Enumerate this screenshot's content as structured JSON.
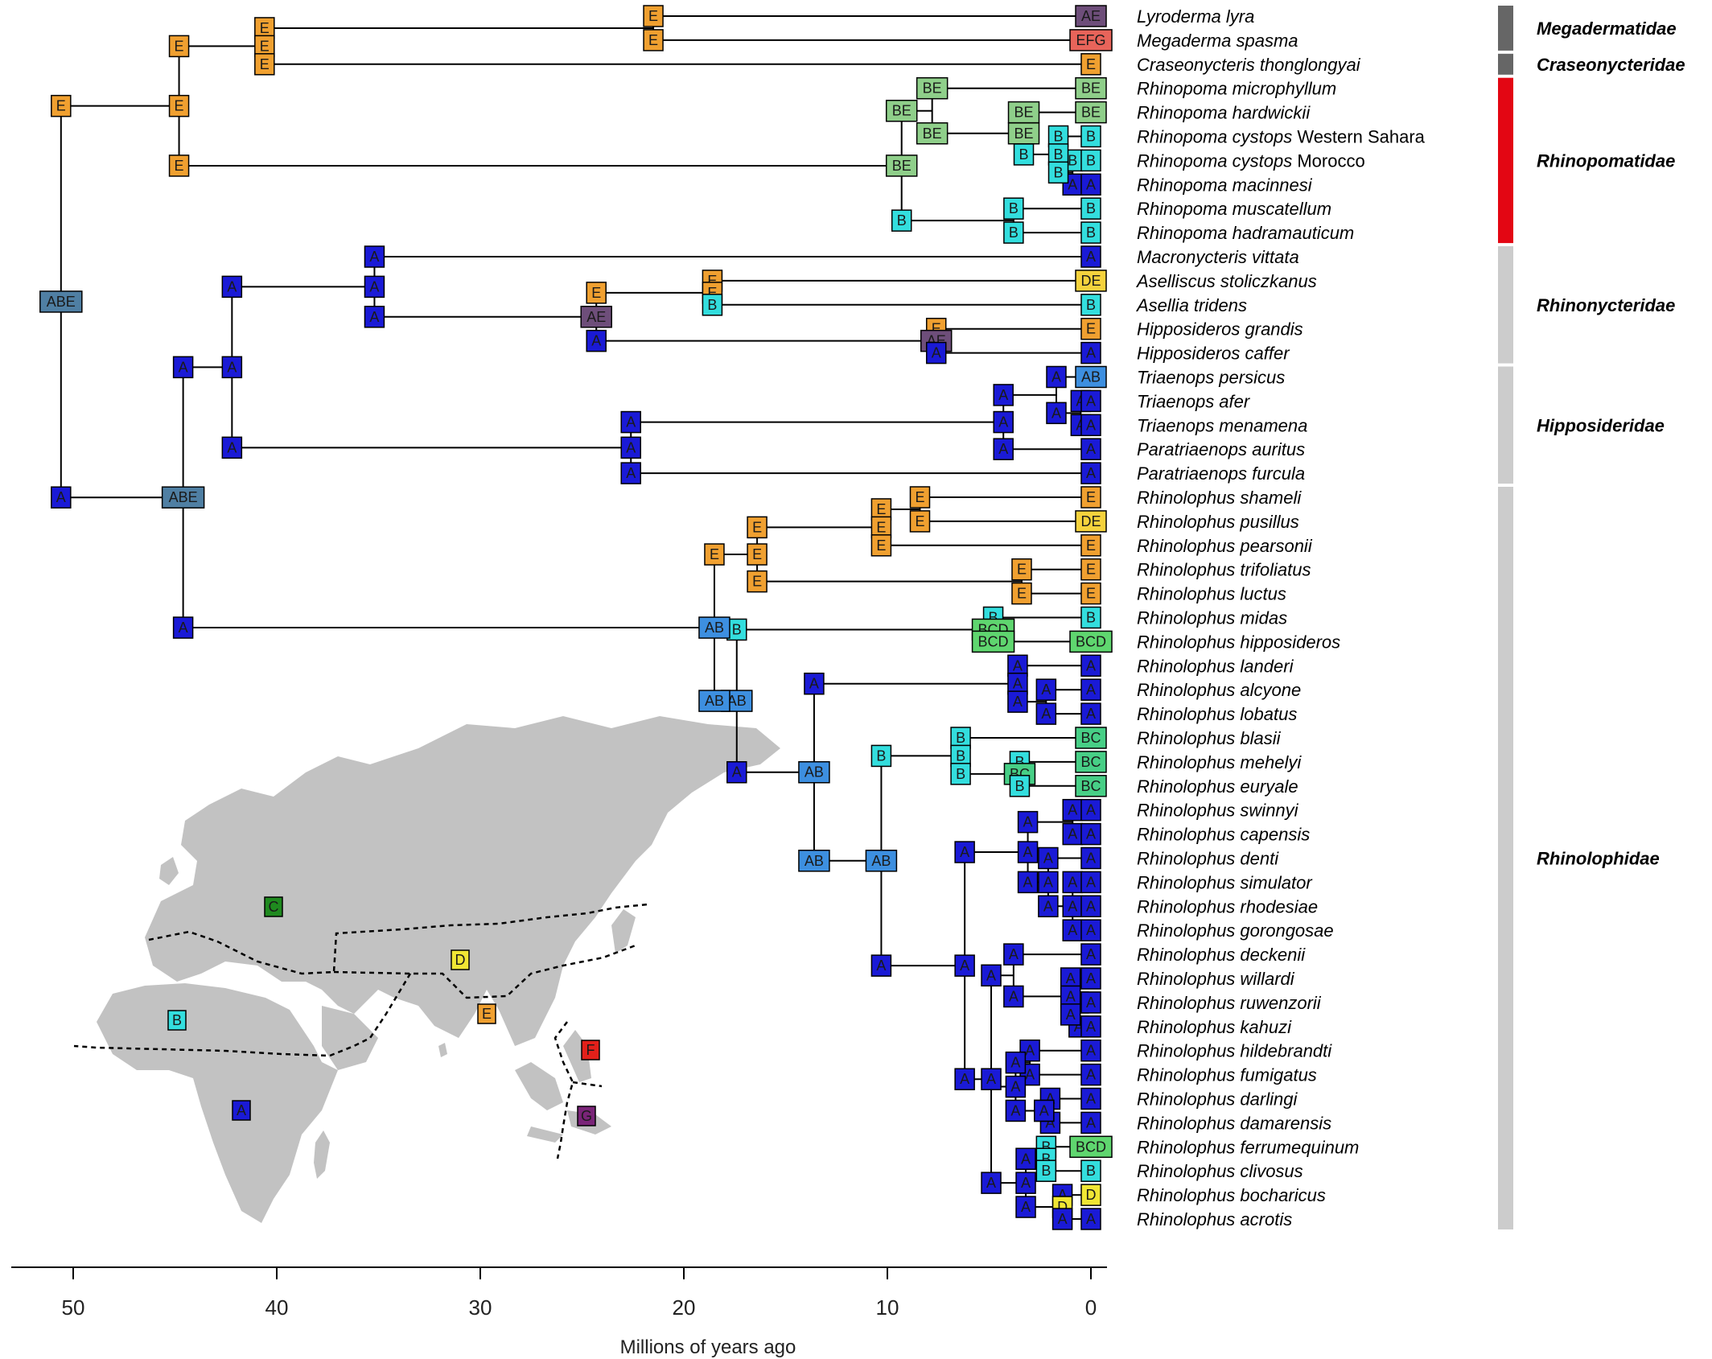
{
  "axis": {
    "title": "Millions of years ago",
    "ticks": [
      "50",
      "40",
      "30",
      "20",
      "10",
      "0"
    ]
  },
  "taxa": [
    {
      "name": "Lyroderma lyra",
      "extra": "",
      "areas": "AE"
    },
    {
      "name": "Megaderma spasma",
      "extra": "",
      "areas": "EFG"
    },
    {
      "name": "Craseonycteris thonglongyai",
      "extra": "",
      "areas": "E"
    },
    {
      "name": "Rhinopoma microphyllum",
      "extra": "",
      "areas": "BE"
    },
    {
      "name": "Rhinopoma hardwickii",
      "extra": "",
      "areas": "BE"
    },
    {
      "name": "Rhinopoma cystops",
      "extra": "Western Sahara",
      "areas": "B"
    },
    {
      "name": "Rhinopoma cystops",
      "extra": "Morocco",
      "areas": "B"
    },
    {
      "name": "Rhinopoma macinnesi",
      "extra": "",
      "areas": "A"
    },
    {
      "name": "Rhinopoma muscatellum",
      "extra": "",
      "areas": "B"
    },
    {
      "name": "Rhinopoma hadramauticum",
      "extra": "",
      "areas": "B"
    },
    {
      "name": "Macronycteris vittata",
      "extra": "",
      "areas": "A"
    },
    {
      "name": "Aselliscus stoliczkanus",
      "extra": "",
      "areas": "DE"
    },
    {
      "name": "Asellia tridens",
      "extra": "",
      "areas": "B"
    },
    {
      "name": "Hipposideros grandis",
      "extra": "",
      "areas": "E"
    },
    {
      "name": "Hipposideros caffer",
      "extra": "",
      "areas": "A"
    },
    {
      "name": "Triaenops persicus",
      "extra": "",
      "areas": "AB"
    },
    {
      "name": "Triaenops afer",
      "extra": "",
      "areas": "A"
    },
    {
      "name": "Triaenops menamena",
      "extra": "",
      "areas": "A"
    },
    {
      "name": "Paratriaenops auritus",
      "extra": "",
      "areas": "A"
    },
    {
      "name": "Paratriaenops furcula",
      "extra": "",
      "areas": "A"
    },
    {
      "name": "Rhinolophus shameli",
      "extra": "",
      "areas": "E"
    },
    {
      "name": "Rhinolophus pusillus",
      "extra": "",
      "areas": "DE"
    },
    {
      "name": "Rhinolophus pearsonii",
      "extra": "",
      "areas": "E"
    },
    {
      "name": "Rhinolophus trifoliatus",
      "extra": "",
      "areas": "E"
    },
    {
      "name": "Rhinolophus luctus",
      "extra": "",
      "areas": "E"
    },
    {
      "name": "Rhinolophus midas",
      "extra": "",
      "areas": "B"
    },
    {
      "name": "Rhinolophus hipposideros",
      "extra": "",
      "areas": "BCD"
    },
    {
      "name": "Rhinolophus landeri",
      "extra": "",
      "areas": "A"
    },
    {
      "name": "Rhinolophus alcyone",
      "extra": "",
      "areas": "A"
    },
    {
      "name": "Rhinolophus lobatus",
      "extra": "",
      "areas": "A"
    },
    {
      "name": "Rhinolophus blasii",
      "extra": "",
      "areas": "BC"
    },
    {
      "name": "Rhinolophus mehelyi",
      "extra": "",
      "areas": "BC"
    },
    {
      "name": "Rhinolophus euryale",
      "extra": "",
      "areas": "BC"
    },
    {
      "name": "Rhinolophus swinnyi",
      "extra": "",
      "areas": "A"
    },
    {
      "name": "Rhinolophus capensis",
      "extra": "",
      "areas": "A"
    },
    {
      "name": "Rhinolophus denti",
      "extra": "",
      "areas": "A"
    },
    {
      "name": "Rhinolophus simulator",
      "extra": "",
      "areas": "A"
    },
    {
      "name": "Rhinolophus rhodesiae",
      "extra": "",
      "areas": "A"
    },
    {
      "name": "Rhinolophus gorongosae",
      "extra": "",
      "areas": "A"
    },
    {
      "name": "Rhinolophus deckenii",
      "extra": "",
      "areas": "A"
    },
    {
      "name": "Rhinolophus willardi",
      "extra": "",
      "areas": "A"
    },
    {
      "name": "Rhinolophus ruwenzorii",
      "extra": "",
      "areas": "A"
    },
    {
      "name": "Rhinolophus kahuzi",
      "extra": "",
      "areas": "A"
    },
    {
      "name": "Rhinolophus hildebrandti",
      "extra": "",
      "areas": "A"
    },
    {
      "name": "Rhinolophus fumigatus",
      "extra": "",
      "areas": "A"
    },
    {
      "name": "Rhinolophus darlingi",
      "extra": "",
      "areas": "A"
    },
    {
      "name": "Rhinolophus damarensis",
      "extra": "",
      "areas": "A"
    },
    {
      "name": "Rhinolophus ferrumequinum",
      "extra": "",
      "areas": "BCD"
    },
    {
      "name": "Rhinolophus clivosus",
      "extra": "",
      "areas": "B"
    },
    {
      "name": "Rhinolophus bocharicus",
      "extra": "",
      "areas": "D"
    },
    {
      "name": "Rhinolophus acrotis",
      "extra": "",
      "areas": "A"
    }
  ],
  "families": [
    {
      "name": "Megadermatidae",
      "first": 0,
      "last": 1,
      "color": "#666666"
    },
    {
      "name": "Craseonycteridae",
      "first": 2,
      "last": 2,
      "color": "#666666"
    },
    {
      "name": "Rhinopomatidae",
      "first": 3,
      "last": 9,
      "color": "#e30613"
    },
    {
      "name": "Rhinonycteridae",
      "first": 10,
      "last": 14,
      "color": "#cccccc"
    },
    {
      "name": "Hipposideridae",
      "first": 15,
      "last": 19,
      "color": "#cccccc"
    },
    {
      "name": "Rhinolophidae",
      "first": 20,
      "last": 50,
      "color": "#cccccc"
    }
  ],
  "area_colors": {
    "A": "#1a1ad6",
    "AB": "#3d8fe0",
    "ABE": "#4f7fa3",
    "AE": "#6e4e7a",
    "B": "#33dede",
    "BC": "#47cf86",
    "BCD": "#5fd66f",
    "BE": "#8fcf8a",
    "C": "#1f8a1f",
    "D": "#f0e634",
    "DE": "#f5d23d",
    "E": "#f0a030",
    "EFG": "#e8645a",
    "F": "#e3201a",
    "G": "#7a2478"
  },
  "tree": {
    "nodes": [
      {
        "age": 50.6,
        "labels": [
          "E",
          "ABE",
          "A"
        ]
      },
      {
        "age": 44.8,
        "labels": [
          "E",
          "E",
          "E"
        ]
      },
      {
        "age": 40.6,
        "labels": [
          "E",
          "E",
          "E"
        ]
      },
      {
        "age": 21.5,
        "labels": [
          "E",
          "E"
        ]
      },
      {
        "age": 9.3,
        "labels": [
          "BE",
          "BE",
          "B"
        ]
      },
      {
        "age": 7.8,
        "labels": [
          "BE",
          "BE"
        ]
      },
      {
        "age": 3.3,
        "labels": [
          "BE",
          "BE",
          "B"
        ]
      },
      {
        "age": 1.6,
        "labels": [
          "B",
          "B",
          "B"
        ]
      },
      {
        "age": 0.9,
        "labels": [
          "B",
          "A"
        ]
      },
      {
        "age": 3.8,
        "labels": [
          "B",
          "B"
        ]
      },
      {
        "age": 44.6,
        "labels": [
          "A",
          "ABE",
          "A"
        ]
      },
      {
        "age": 42.2,
        "labels": [
          "A",
          "A",
          "A"
        ]
      },
      {
        "age": 35.2,
        "labels": [
          "A",
          "A",
          "A"
        ]
      },
      {
        "age": 24.3,
        "labels": [
          "E",
          "AE",
          "A"
        ]
      },
      {
        "age": 18.6,
        "labels": [
          "E",
          "E",
          "B"
        ]
      },
      {
        "age": 7.6,
        "labels": [
          "E",
          "AE",
          "A"
        ]
      },
      {
        "age": 22.6,
        "labels": [
          "A",
          "A",
          "A"
        ]
      },
      {
        "age": 4.3,
        "labels": [
          "A",
          "A",
          "A"
        ]
      },
      {
        "age": 1.7,
        "labels": [
          "A",
          "A"
        ]
      },
      {
        "age": 0.5,
        "labels": [
          "A",
          "A"
        ]
      },
      {
        "age": 18.5,
        "labels": [
          "E",
          "AB",
          "AB"
        ]
      },
      {
        "age": 16.4,
        "labels": [
          "E",
          "E",
          "E"
        ]
      },
      {
        "age": 10.3,
        "labels": [
          "E",
          "E",
          "E"
        ]
      },
      {
        "age": 8.4,
        "labels": [
          "E",
          "E"
        ]
      },
      {
        "age": 3.4,
        "labels": [
          "E",
          "E"
        ]
      },
      {
        "age": 17.4,
        "labels": [
          "B",
          "AB",
          "A"
        ]
      },
      {
        "age": 4.8,
        "labels": [
          "B",
          "BCD",
          "BCD"
        ]
      },
      {
        "age": 13.6,
        "labels": [
          "A",
          "AB",
          "AB"
        ]
      },
      {
        "age": 3.6,
        "labels": [
          "A",
          "A",
          "A"
        ]
      },
      {
        "age": 2.2,
        "labels": [
          "A",
          "A"
        ]
      },
      {
        "age": 10.3,
        "labels": [
          "B",
          "AB",
          "A"
        ]
      },
      {
        "age": 6.4,
        "labels": [
          "B",
          "B",
          "B"
        ]
      },
      {
        "age": 3.5,
        "labels": [
          "B",
          "BC",
          "B"
        ]
      },
      {
        "age": 6.2,
        "labels": [
          "A",
          "A",
          "A"
        ]
      },
      {
        "age": 3.1,
        "labels": [
          "A",
          "A",
          "A"
        ]
      },
      {
        "age": 0.9,
        "labels": [
          "A",
          "A"
        ]
      },
      {
        "age": 2.1,
        "labels": [
          "A",
          "A",
          "A"
        ]
      },
      {
        "age": 0.9,
        "labels": [
          "A",
          "A",
          "A"
        ]
      },
      {
        "age": 4.9,
        "labels": [
          "A",
          "A",
          "A"
        ]
      },
      {
        "age": 3.8,
        "labels": [
          "A",
          "A"
        ]
      },
      {
        "age": 1.0,
        "labels": [
          "A",
          "A",
          "A"
        ]
      },
      {
        "age": 0.6,
        "labels": [
          "A",
          "A"
        ]
      },
      {
        "age": 3.7,
        "labels": [
          "A",
          "A",
          "A"
        ]
      },
      {
        "age": 3.0,
        "labels": [
          "A",
          "A"
        ]
      },
      {
        "age": 2.3,
        "labels": [
          "A",
          "A"
        ]
      },
      {
        "age": 2.0,
        "labels": [
          "A",
          "A"
        ]
      },
      {
        "age": 3.2,
        "labels": [
          "A",
          "A",
          "A"
        ]
      },
      {
        "age": 2.2,
        "labels": [
          "B",
          "B",
          "B"
        ]
      },
      {
        "age": 1.4,
        "labels": [
          "A",
          "D",
          "A"
        ]
      }
    ]
  },
  "map_regions": [
    {
      "label": "A"
    },
    {
      "label": "B"
    },
    {
      "label": "C"
    },
    {
      "label": "D"
    },
    {
      "label": "E"
    },
    {
      "label": "F"
    },
    {
      "label": "G"
    }
  ]
}
